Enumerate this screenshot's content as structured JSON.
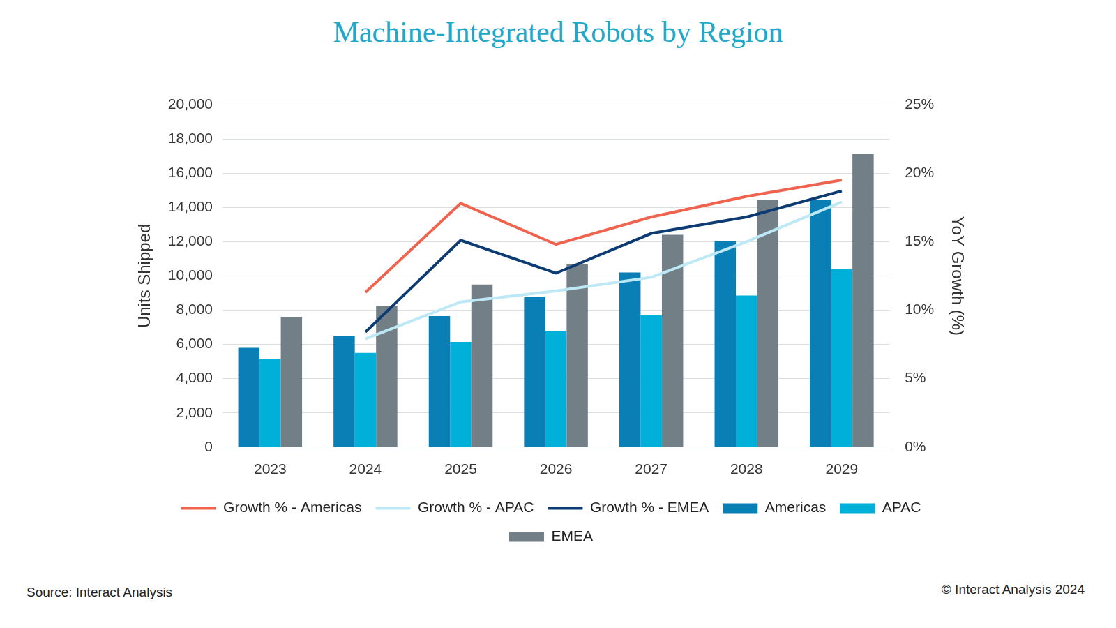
{
  "chart_data": {
    "type": "bar",
    "title": "Machine-Integrated Robots by Region",
    "y_label": "Units Shipped",
    "y2_label": "YoY Growth (%)",
    "source": "Source: Interact Analysis",
    "copyright": "© Interact Analysis 2024",
    "categories": [
      "2023",
      "2024",
      "2025",
      "2026",
      "2027",
      "2028",
      "2029"
    ],
    "series": [
      {
        "name": "Americas",
        "type": "bar",
        "color": "#0a7fb5",
        "values": [
          5800,
          6500,
          7650,
          8750,
          10200,
          12050,
          14450
        ]
      },
      {
        "name": "APAC",
        "type": "bar",
        "color": "#00b0d8",
        "values": [
          5150,
          5500,
          6150,
          6800,
          7700,
          8850,
          10400
        ]
      },
      {
        "name": "EMEA",
        "type": "bar",
        "color": "#737f87",
        "values": [
          7600,
          8250,
          9500,
          10700,
          12400,
          14450,
          17150
        ]
      },
      {
        "name": "Growth % - Americas",
        "type": "line",
        "axis": "y2",
        "color": "#f0644f",
        "values": [
          null,
          11.3,
          17.8,
          14.8,
          16.8,
          18.3,
          19.5
        ]
      },
      {
        "name": "Growth % - APAC",
        "type": "line",
        "axis": "y2",
        "color": "#bde8f5",
        "values": [
          null,
          7.9,
          10.6,
          11.4,
          12.4,
          15.0,
          17.9
        ]
      },
      {
        "name": "Growth % - EMEA",
        "type": "line",
        "axis": "y2",
        "color": "#0d3b73",
        "values": [
          null,
          8.4,
          15.1,
          12.7,
          15.6,
          16.8,
          18.7
        ]
      }
    ],
    "ylim": [
      0,
      20000
    ],
    "yticks": [
      0,
      {
        "value": 2000,
        "label": "2,000"
      },
      {
        "value": 4000,
        "label": "4,000"
      },
      {
        "value": 6000,
        "label": "6,000"
      },
      {
        "value": 8000,
        "label": "8,000"
      },
      {
        "value": 10000,
        "label": "10,000"
      },
      {
        "value": 12000,
        "label": "12,000"
      },
      {
        "value": 14000,
        "label": "14,000"
      },
      {
        "value": 16000,
        "label": "16,000"
      },
      {
        "value": 18000,
        "label": "18,000"
      },
      {
        "value": 20000,
        "label": "20,000"
      }
    ],
    "y2lim": [
      0,
      25
    ],
    "y2ticks": [
      {
        "value": 0,
        "label": "0%"
      },
      {
        "value": 5,
        "label": "5%"
      },
      {
        "value": 10,
        "label": "10%"
      },
      {
        "value": 15,
        "label": "15%"
      },
      {
        "value": 20,
        "label": "20%"
      },
      {
        "value": 25,
        "label": "25%"
      }
    ],
    "grid": true,
    "legend": "bottom"
  }
}
